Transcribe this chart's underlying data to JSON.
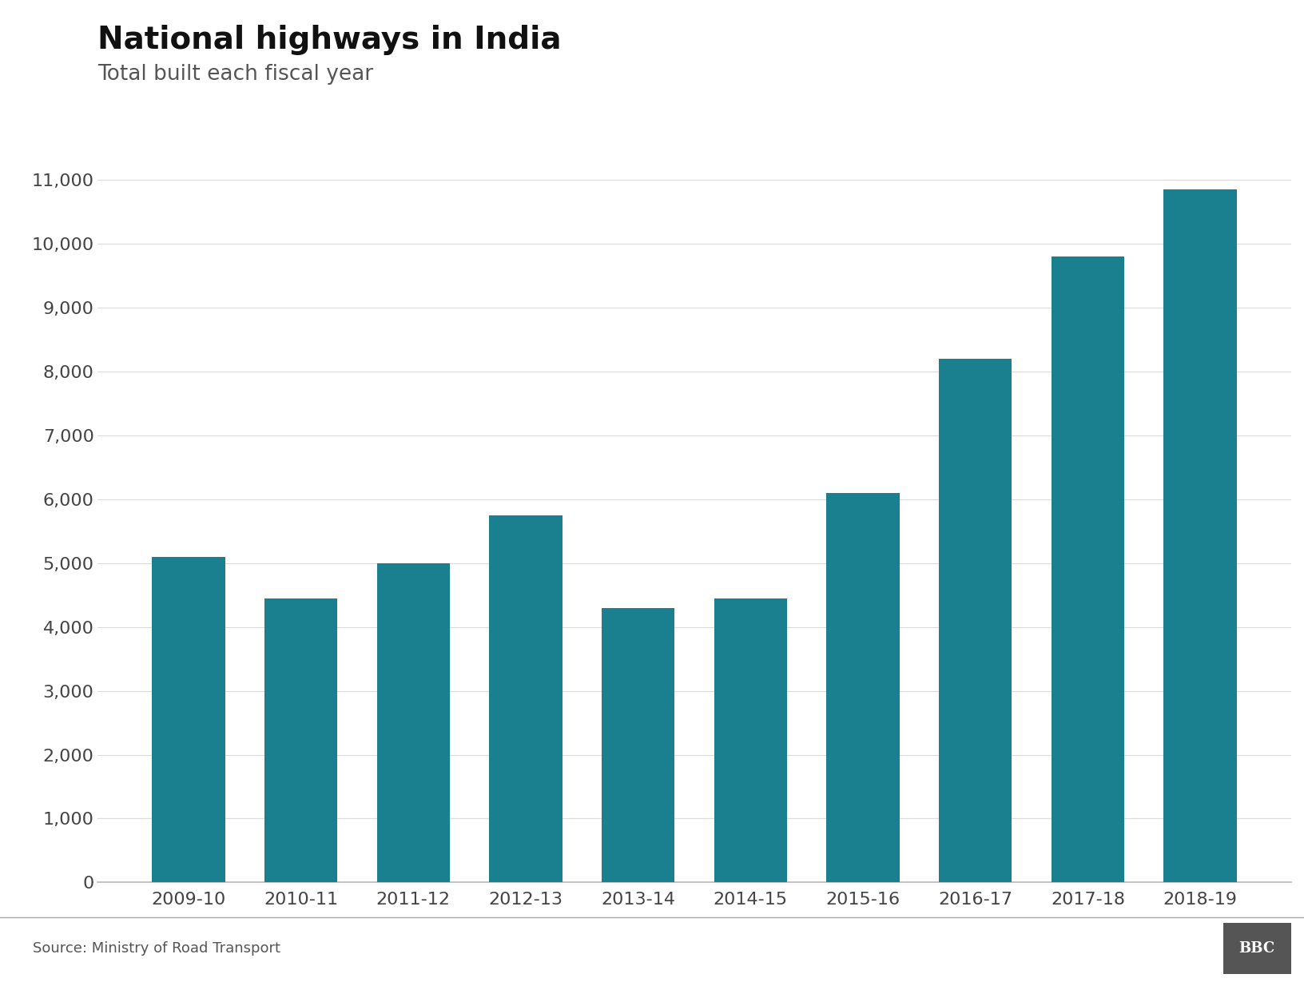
{
  "title": "National highways in India",
  "subtitle": "Total built each fiscal year",
  "source": "Source: Ministry of Road Transport",
  "bbc_label": "BBC",
  "categories": [
    "2009-10",
    "2010-11",
    "2011-12",
    "2012-13",
    "2013-14",
    "2014-15",
    "2015-16",
    "2016-17",
    "2017-18",
    "2018-19"
  ],
  "values": [
    5100,
    4450,
    5000,
    5750,
    4300,
    4450,
    6100,
    8200,
    9800,
    10855
  ],
  "bar_color": "#1a7f8e",
  "background_color": "#ffffff",
  "ylim": [
    0,
    11500
  ],
  "yticks": [
    0,
    1000,
    2000,
    3000,
    4000,
    5000,
    6000,
    7000,
    8000,
    9000,
    10000,
    11000
  ],
  "title_fontsize": 28,
  "subtitle_fontsize": 19,
  "tick_fontsize": 16,
  "source_fontsize": 13,
  "bar_width": 0.65
}
